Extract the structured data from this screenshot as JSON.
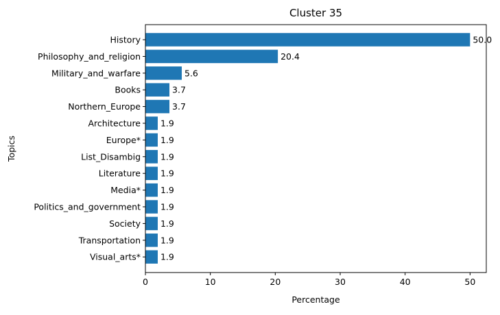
{
  "chart_data": {
    "type": "bar",
    "orientation": "horizontal",
    "title": "Cluster 35",
    "xlabel": "Percentage",
    "ylabel": "Topics",
    "xlim": [
      0,
      52.5
    ],
    "xticks": [
      0,
      10,
      20,
      30,
      40,
      50
    ],
    "grid": false,
    "bar_color": "#1f77b4",
    "categories": [
      "History",
      "Philosophy_and_religion",
      "Military_and_warfare",
      "Books",
      "Northern_Europe",
      "Architecture",
      "Europe*",
      "List_Disambig",
      "Literature",
      "Media*",
      "Politics_and_government",
      "Society",
      "Transportation",
      "Visual_arts*"
    ],
    "values": [
      50.0,
      20.4,
      5.6,
      3.7,
      3.7,
      1.9,
      1.9,
      1.9,
      1.9,
      1.9,
      1.9,
      1.9,
      1.9,
      1.9
    ],
    "value_labels": [
      "50.0",
      "20.4",
      "5.6",
      "3.7",
      "3.7",
      "1.9",
      "1.9",
      "1.9",
      "1.9",
      "1.9",
      "1.9",
      "1.9",
      "1.9",
      "1.9"
    ]
  }
}
